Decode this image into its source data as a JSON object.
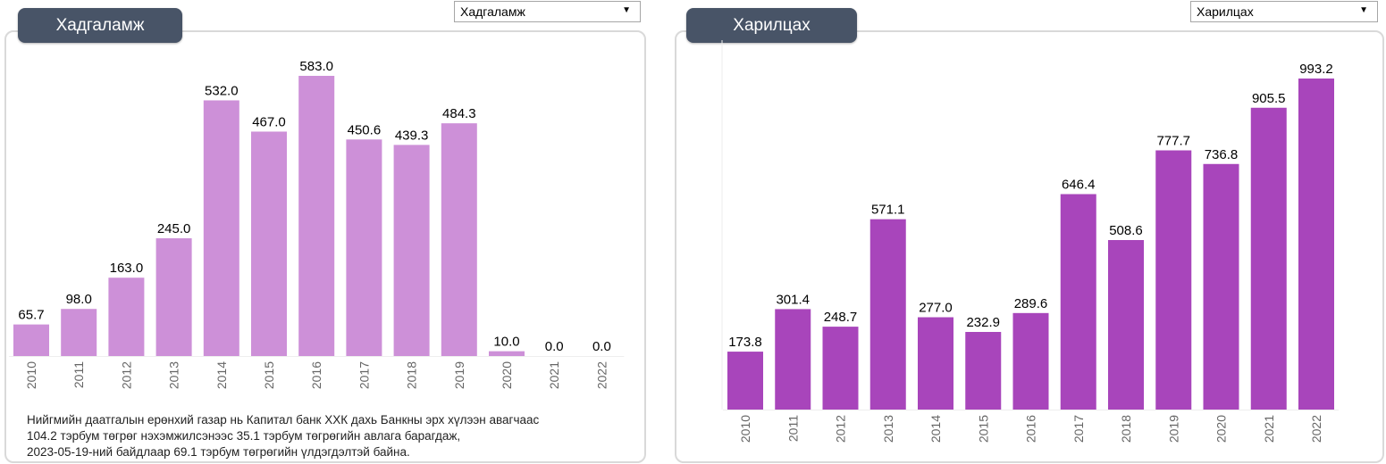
{
  "colors": {
    "left_bar": "#cd90d8",
    "right_bar": "#a845bb",
    "tab_bg": "#485467"
  },
  "left": {
    "tab_label": "Хадгаламж",
    "select_value": "Хадгаламж",
    "note_lines": [
      "Нийгмийн даатгалын ерөнхий газар нь Капитал банк  ХХК дахь Банкны эрх хүлээн авагчаас",
      "104.2 тэрбум төгрөг нэхэмжилсэнээс  35.1 тэрбум төгрөгийн авлага барагдаж,",
      "2023-05-19-ний байдлаар 69.1 тэрбум төгрөгийн үлдэгдэлтэй байна."
    ]
  },
  "right": {
    "tab_label": "Харилцах",
    "select_value": "Харилцах"
  },
  "chart_data": [
    {
      "type": "bar",
      "title": "Хадгаламж",
      "categories": [
        "2010",
        "2011",
        "2012",
        "2013",
        "2014",
        "2015",
        "2016",
        "2017",
        "2018",
        "2019",
        "2020",
        "2021",
        "2022"
      ],
      "values": [
        65.7,
        98.0,
        163.0,
        245.0,
        532.0,
        467.0,
        583.0,
        450.6,
        439.3,
        484.3,
        10.0,
        0.0,
        0.0
      ],
      "labels": [
        "65.7",
        "98.0",
        "163.0",
        "245.0",
        "532.0",
        "467.0",
        "583.0",
        "450.6",
        "439.3",
        "484.3",
        "10.0",
        "0.0",
        "0.0"
      ],
      "ylim": [
        0,
        583
      ]
    },
    {
      "type": "bar",
      "title": "Харилцах",
      "categories": [
        "2010",
        "2011",
        "2012",
        "2013",
        "2014",
        "2015",
        "2016",
        "2017",
        "2018",
        "2019",
        "2020",
        "2021",
        "2022"
      ],
      "values": [
        173.8,
        301.4,
        248.7,
        571.1,
        277.0,
        232.9,
        289.6,
        646.4,
        508.6,
        777.7,
        736.8,
        905.5,
        993.2
      ],
      "labels": [
        "173.8",
        "301.4",
        "248.7",
        "571.1",
        "277.0",
        "232.9",
        "289.6",
        "646.4",
        "508.6",
        "777.7",
        "736.8",
        "905.5",
        "993.2"
      ],
      "ylim": [
        0,
        993.2
      ]
    }
  ]
}
